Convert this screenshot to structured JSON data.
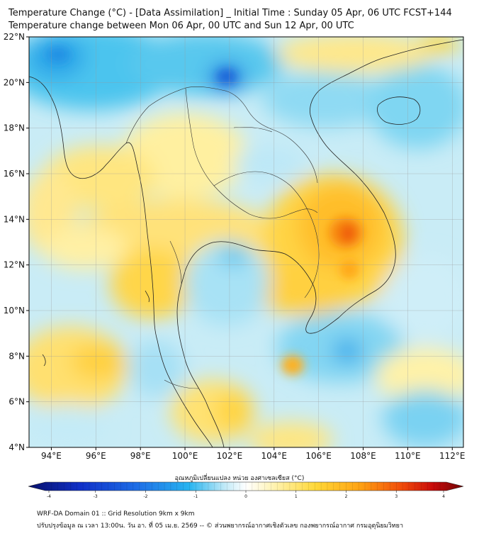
{
  "titles": {
    "line1": "Temperature Change (°C) - [Data Assimilation] _ Initial Time : Sunday 05 Apr, 06 UTC FCST+144",
    "line2": "Temperature change between Mon 06 Apr, 00 UTC and Sun 12 Apr, 00 UTC"
  },
  "map": {
    "lon_range": [
      93,
      112.5
    ],
    "lat_range": [
      4,
      22
    ],
    "lat_ticks": [
      {
        "value": 22,
        "label": "22°N"
      },
      {
        "value": 20,
        "label": "20°N"
      },
      {
        "value": 18,
        "label": "18°N"
      },
      {
        "value": 16,
        "label": "16°N"
      },
      {
        "value": 14,
        "label": "14°N"
      },
      {
        "value": 12,
        "label": "12°N"
      },
      {
        "value": 10,
        "label": "10°N"
      },
      {
        "value": 8,
        "label": "8°N"
      },
      {
        "value": 6,
        "label": "6°N"
      },
      {
        "value": 4,
        "label": "4°N"
      }
    ],
    "lon_ticks": [
      {
        "value": 94,
        "label": "94°E"
      },
      {
        "value": 96,
        "label": "96°E"
      },
      {
        "value": 98,
        "label": "98°E"
      },
      {
        "value": 100,
        "label": "100°E"
      },
      {
        "value": 102,
        "label": "102°E"
      },
      {
        "value": 104,
        "label": "104°E"
      },
      {
        "value": 106,
        "label": "106°E"
      },
      {
        "value": 108,
        "label": "108°E"
      },
      {
        "value": 110,
        "label": "110°E"
      },
      {
        "value": 112,
        "label": "112°E"
      }
    ],
    "gridlines": true
  },
  "colorbar": {
    "label": "อุณหภูมิเปลี่ยนแปลง หน่วย องศาเซลเซียส (°C)",
    "min": -4,
    "max": 4,
    "ticks": [
      {
        "value": -4,
        "label": "-4"
      },
      {
        "value": -3,
        "label": "-3"
      },
      {
        "value": -2,
        "label": "-2"
      },
      {
        "value": -1,
        "label": "-1"
      },
      {
        "value": 0,
        "label": "0"
      },
      {
        "value": 1,
        "label": "1"
      },
      {
        "value": 2,
        "label": "2"
      },
      {
        "value": 3,
        "label": "3"
      },
      {
        "value": 4,
        "label": "4"
      }
    ],
    "colors": [
      "#08106a",
      "#1030c8",
      "#1e6ee6",
      "#28b4f0",
      "#bfe9f7",
      "#ffffff",
      "#fff4b8",
      "#ffd838",
      "#ffa414",
      "#f04a0a",
      "#c80a0a",
      "#6e0505"
    ]
  },
  "footer": {
    "line1": "WRF-DA Domain 01 :: Grid Resolution 9km x 9km",
    "line2": "ปรับปรุงข้อมูล ณ เวลา 13:00น. วัน อา. ที่ 05 เม.ย. 2569 -- © ส่วนพยากรณ์อากาศเชิงตัวเลข กองพยากรณ์อากาศ กรมอุตุนิยมวิทยา"
  }
}
